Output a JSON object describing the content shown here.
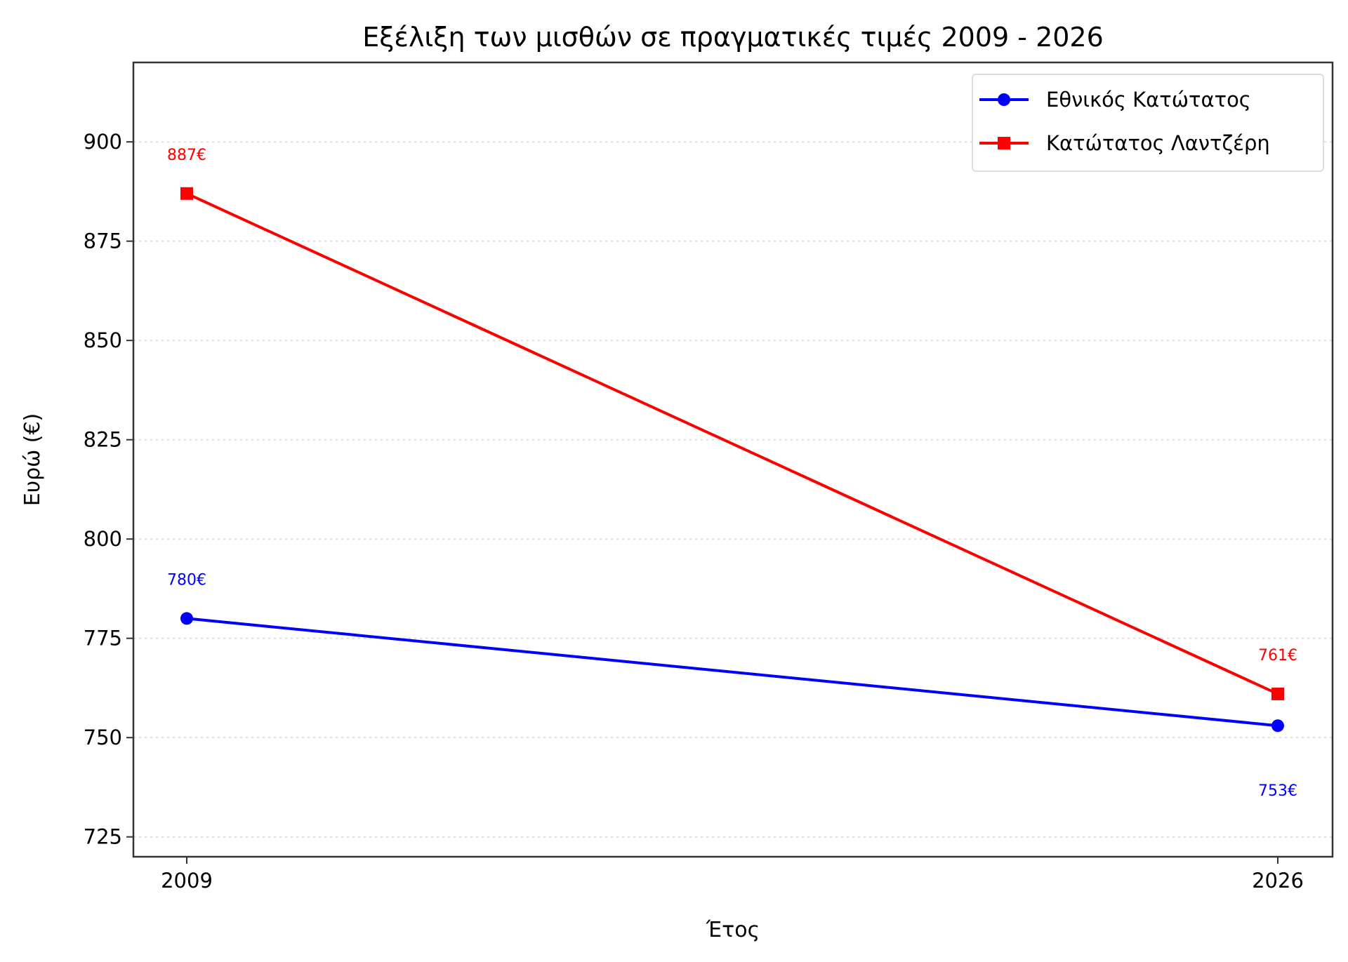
{
  "chart_data": {
    "type": "line",
    "title": "Εξέλιξη των μισθών σε πραγματικές τιμές 2009 - 2026",
    "xlabel": "Έτος",
    "ylabel": "Ευρώ (€)",
    "categories": [
      "2009",
      "2026"
    ],
    "ylim": [
      720,
      920
    ],
    "yticks": [
      725,
      750,
      775,
      800,
      825,
      850,
      875,
      900
    ],
    "grid": "horizontal dotted",
    "legend": "top-right",
    "series": [
      {
        "name": "Εθνικός Κατώτατος",
        "values": [
          780,
          753
        ],
        "labels": [
          "780€",
          "753€"
        ],
        "color": "#0000ff",
        "marker": "circle"
      },
      {
        "name": "Κατώτατος Λαντζέρη",
        "values": [
          887,
          761
        ],
        "labels": [
          "887€",
          "761€"
        ],
        "color": "#ff0000",
        "marker": "square"
      }
    ]
  }
}
